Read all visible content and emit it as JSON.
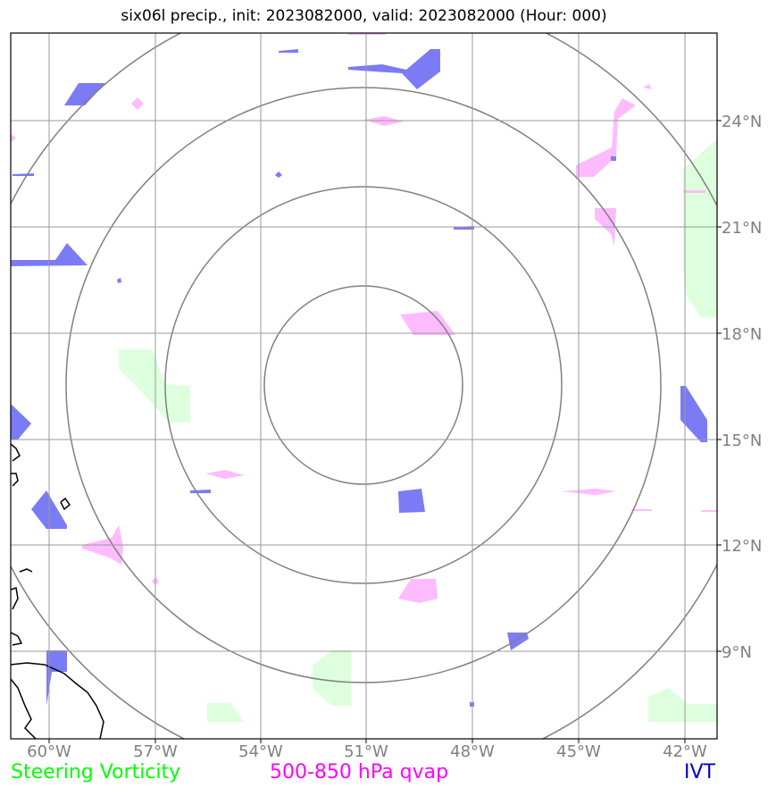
{
  "title": "six06l precip., init: 2023082000, valid: 2023082000 (Hour: 000)",
  "lon_labels": [
    "60°W",
    "57°W",
    "54°W",
    "51°W",
    "48°W",
    "45°W",
    "42°W"
  ],
  "lat_labels": [
    "24°N",
    "21°N",
    "18°N",
    "15°N",
    "12°N",
    "9°N"
  ],
  "legend": {
    "vorticity": "Steering Vorticity",
    "qvap": "500-850 hPa qvap",
    "ivt": "IVT"
  },
  "colors": {
    "vorticity": "#00ff00",
    "qvap": "#ff00ff",
    "ivt": "#0000cc",
    "vorticity_fill": "#ddffdd",
    "qvap_fill": "#ffbbff",
    "ivt_fill": "#7b7bf5",
    "grid": "#999999",
    "rings": "#808080",
    "coast": "#000000"
  }
}
